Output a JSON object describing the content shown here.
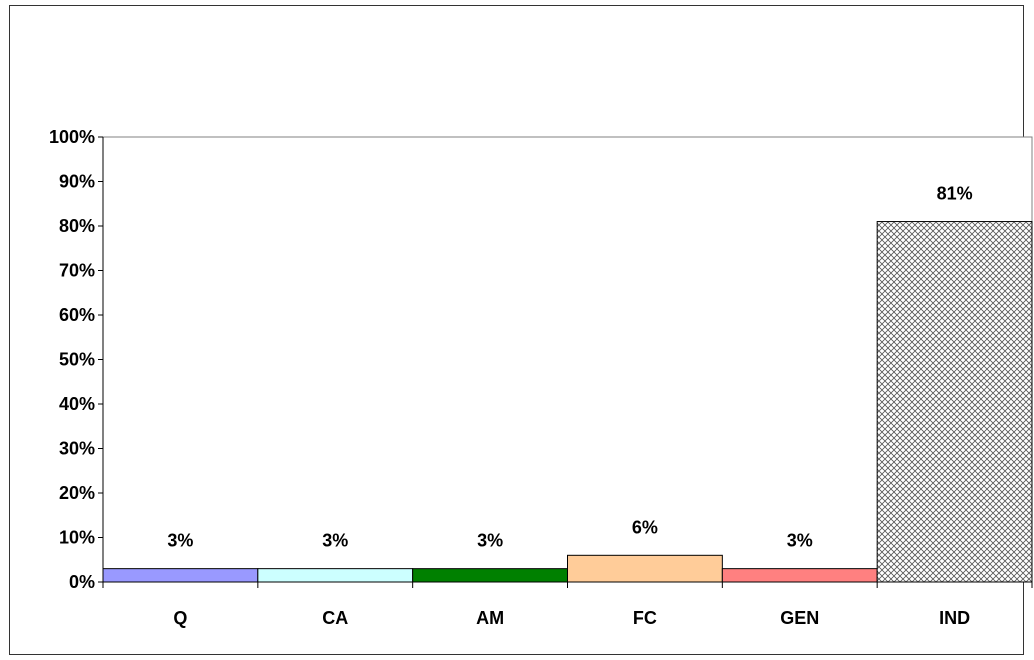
{
  "chart_data": {
    "type": "bar",
    "title": "",
    "xlabel": "",
    "ylabel": "",
    "categories": [
      "Q",
      "CA",
      "AM",
      "FC",
      "GEN",
      "IND"
    ],
    "values": [
      3,
      3,
      3,
      6,
      3,
      81
    ],
    "data_labels": [
      "3%",
      "3%",
      "3%",
      "6%",
      "3%",
      "81%"
    ],
    "bar_colors": [
      "#9999ff",
      "#ccffff",
      "#008000",
      "#ffcc99",
      "#ff8080",
      "crosshatch"
    ],
    "ylim": [
      0,
      100
    ],
    "y_ticks": [
      0,
      10,
      20,
      30,
      40,
      50,
      60,
      70,
      80,
      90,
      100
    ],
    "y_tick_labels": [
      "0%",
      "10%",
      "20%",
      "30%",
      "40%",
      "50%",
      "60%",
      "70%",
      "80%",
      "90%",
      "100%"
    ],
    "grid": false,
    "legend": "none"
  }
}
